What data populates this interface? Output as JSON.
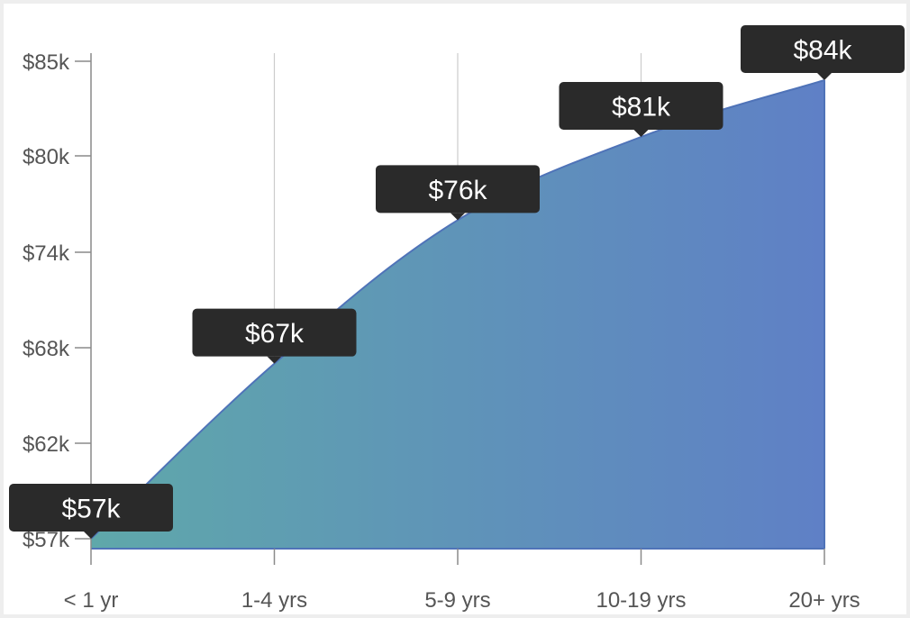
{
  "chart_data": {
    "type": "area",
    "categories": [
      "< 1 yr",
      "1-4 yrs",
      "5-9 yrs",
      "10-19 yrs",
      "20+ yrs"
    ],
    "values": [
      57,
      67,
      76,
      81,
      84
    ],
    "data_labels": [
      "$57k",
      "$67k",
      "$76k",
      "$81k",
      "$84k"
    ],
    "yticks": [
      57,
      62,
      68,
      74,
      80,
      85
    ],
    "ytick_labels": [
      "$57k",
      "$62k",
      "$68k",
      "$74k",
      "$80k",
      "$85k"
    ],
    "ylim": [
      57,
      85
    ],
    "grid": "vertical",
    "colors": {
      "gradient_start": "#5fa8aa",
      "gradient_end": "#5f80c6",
      "line": "#4f73b8",
      "label_bg": "#2a2a2a",
      "axis": "#8a8a8a"
    }
  }
}
